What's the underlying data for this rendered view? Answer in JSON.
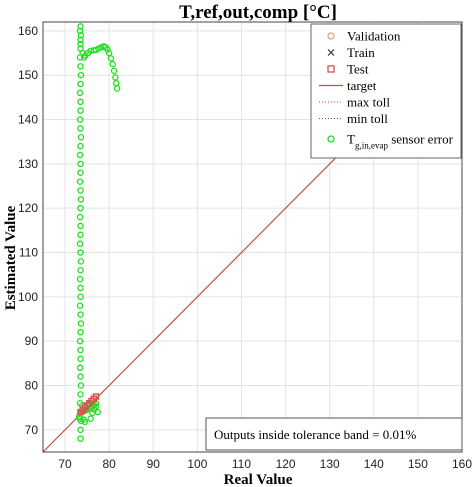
{
  "chart_data": {
    "type": "scatter",
    "title": "T,ref,out,comp [°C]",
    "xlabel": "Real Value",
    "ylabel": "Estimated Value",
    "xlim": [
      65,
      160
    ],
    "ylim": [
      65,
      162
    ],
    "x_ticks": [
      70,
      80,
      90,
      100,
      110,
      120,
      130,
      140,
      150,
      160
    ],
    "y_ticks": [
      70,
      80,
      90,
      100,
      110,
      120,
      130,
      140,
      150,
      160
    ],
    "grid": true,
    "legend_position": "top-right",
    "annotation": "Outputs inside tolerance band = 0.01%",
    "legend": [
      {
        "label": "Validation",
        "marker": "circle",
        "color": "#f4a08a"
      },
      {
        "label": "Train",
        "marker": "x",
        "color": "#333333"
      },
      {
        "label": "Test",
        "marker": "square",
        "color": "#d9534f"
      },
      {
        "label": "target",
        "marker": "line",
        "color": "#b5533c"
      },
      {
        "label": "max toll",
        "marker": "dotted",
        "color": "#c04040"
      },
      {
        "label": "min toll",
        "marker": "dotted",
        "color": "#555555"
      },
      {
        "label": "T",
        "sub": "g,in,evap",
        "suffix": " sensor error",
        "marker": "circle",
        "color": "#22dd22"
      }
    ],
    "series": [
      {
        "name": "target",
        "kind": "line",
        "x": [
          65,
          160
        ],
        "y": [
          65,
          160
        ]
      },
      {
        "name": "Tg,in,evap sensor error",
        "kind": "scatter",
        "x": [
          73.5,
          73.5,
          73.6,
          73.5,
          73.4,
          73.5,
          73.6,
          73.5,
          73.4,
          73.5,
          73.5,
          73.4,
          73.5,
          73.6,
          73.5,
          73.4,
          73.5,
          73.5,
          73.4,
          73.5,
          73.6,
          73.5,
          73.4,
          73.5,
          73.5,
          73.4,
          73.5,
          73.6,
          73.5,
          73.4,
          73.5,
          73.5,
          73.4,
          73.5,
          73.6,
          73.5,
          73.4,
          73.5,
          73.5,
          73.4,
          73.5,
          73.6,
          73.5,
          73.4,
          73.5,
          73.5,
          73.4,
          73.5,
          73.6,
          73.5,
          74.0,
          74.3,
          74.6,
          75.2,
          75.8,
          76.5,
          77.0,
          77.6,
          78.2,
          78.8,
          79.2,
          79.6,
          80.0,
          80.4,
          80.8,
          81.1,
          81.4,
          81.6,
          81.8,
          73.2,
          73.4,
          73.6,
          73.9,
          74.2,
          74.5,
          74.9,
          75.3,
          75.8,
          76.2,
          76.6,
          77.0,
          77.4,
          73.8,
          74.3,
          74.8,
          75.5,
          76.0,
          76.6,
          77.0
        ],
        "y": [
          68,
          70,
          72,
          74,
          76,
          78,
          80,
          82,
          84,
          86,
          88,
          90,
          92,
          94,
          96,
          98,
          100,
          102,
          104,
          106,
          108,
          110,
          112,
          114,
          116,
          118,
          120,
          122,
          124,
          126,
          128,
          130,
          132,
          134,
          136,
          138,
          140,
          142,
          144,
          146,
          148,
          150,
          152,
          154,
          156,
          158,
          160,
          161,
          159,
          157,
          155,
          154,
          154.5,
          155,
          155.5,
          155.6,
          155.7,
          156.0,
          156.3,
          156.5,
          156.3,
          155.8,
          155.0,
          153.8,
          152.5,
          151.0,
          149.5,
          148.2,
          147.0,
          73.0,
          72.5,
          74.0,
          75.5,
          72.3,
          71.8,
          74.5,
          75.8,
          72.5,
          73.8,
          74.6,
          75.2,
          74.0,
          74.0,
          74.2,
          74.5,
          74.8,
          75.2,
          75.6,
          76.0
        ]
      },
      {
        "name": "Test",
        "kind": "scatter",
        "x": [
          73.5,
          74.0,
          74.5,
          75.0,
          75.5,
          76.0,
          76.5,
          77.0
        ],
        "y": [
          74.0,
          74.5,
          75.0,
          75.5,
          76.0,
          76.5,
          77.0,
          77.5
        ]
      }
    ]
  }
}
